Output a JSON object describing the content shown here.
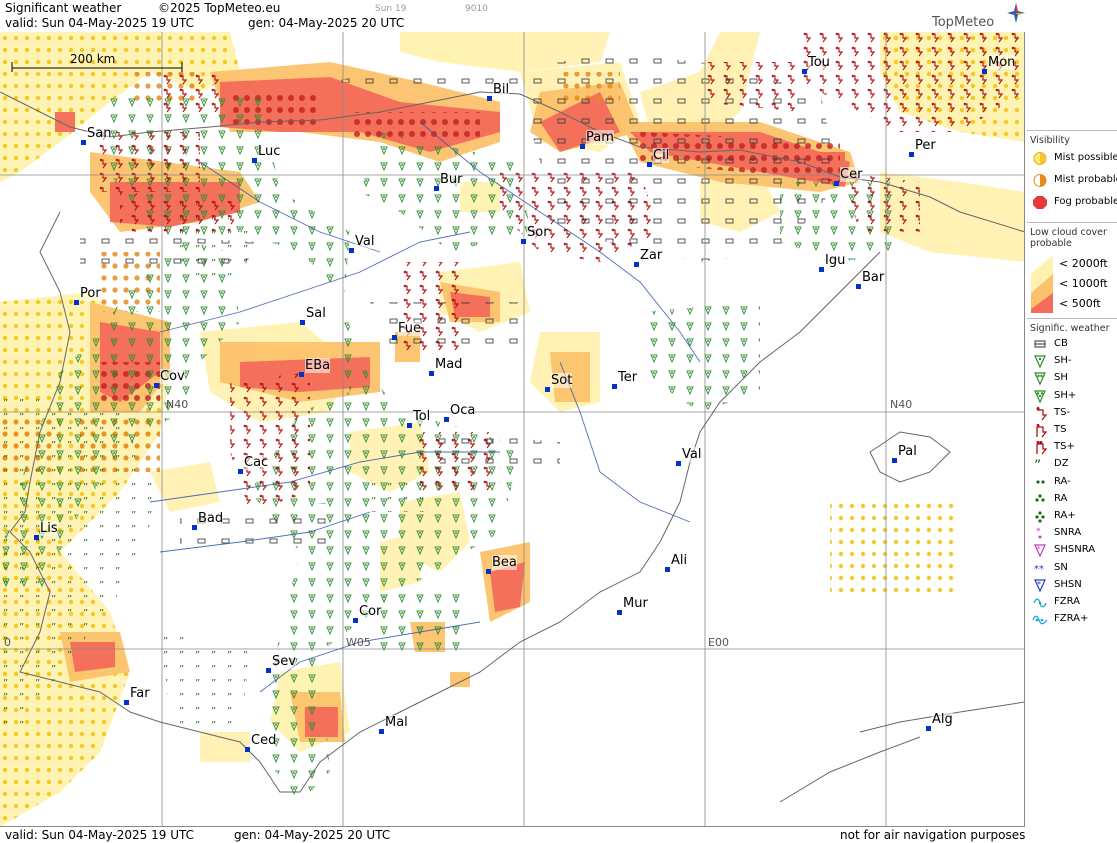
{
  "header": {
    "title": "Significant weather",
    "copyright": "©2025 TopMeteo.eu",
    "valid": "valid:  Sun  04-May-2025  19 UTC",
    "gen": "gen: 04-May-2025  20 UTC",
    "sun": "Sun 19",
    "code": "9010",
    "logo": "TopMeteo"
  },
  "scale": {
    "label": "200 km"
  },
  "footer": {
    "valid": "valid:  Sun  04-May-2025  19 UTC",
    "gen": "gen: 04-May-2025  20 UTC",
    "disclaimer": "not for air navigation purposes"
  },
  "grid_labels": [
    {
      "text": "N40",
      "at": "west"
    },
    {
      "text": "N40",
      "at": "east"
    },
    {
      "text": "W05"
    },
    {
      "text": "E00"
    },
    {
      "text": "0"
    }
  ],
  "cities": [
    {
      "name": "San"
    },
    {
      "name": "Luc"
    },
    {
      "name": "Bur"
    },
    {
      "name": "Bil"
    },
    {
      "name": "Pam"
    },
    {
      "name": "Cil"
    },
    {
      "name": "Tou"
    },
    {
      "name": "Mon"
    },
    {
      "name": "Per"
    },
    {
      "name": "Cer"
    },
    {
      "name": "Val"
    },
    {
      "name": "Sor"
    },
    {
      "name": "Zar"
    },
    {
      "name": "Igu"
    },
    {
      "name": "Bar"
    },
    {
      "name": "Por"
    },
    {
      "name": "Sal"
    },
    {
      "name": "Fue"
    },
    {
      "name": "Mad"
    },
    {
      "name": "EBa"
    },
    {
      "name": "Cov"
    },
    {
      "name": "Sot"
    },
    {
      "name": "Ter"
    },
    {
      "name": "Tol"
    },
    {
      "name": "Oca"
    },
    {
      "name": "Cac"
    },
    {
      "name": "Val"
    },
    {
      "name": "Pal"
    },
    {
      "name": "Bad"
    },
    {
      "name": "Lis"
    },
    {
      "name": "Bea"
    },
    {
      "name": "Ali"
    },
    {
      "name": "Mur"
    },
    {
      "name": "Cor"
    },
    {
      "name": "Sev"
    },
    {
      "name": "Far"
    },
    {
      "name": "Mal"
    },
    {
      "name": "Ced"
    },
    {
      "name": "Alg"
    }
  ],
  "legend": {
    "visibility": {
      "title": "Visibility",
      "items": [
        {
          "label": "Mist possible",
          "color": "#ffe97a"
        },
        {
          "label": "Mist probable",
          "color": "#f6a623"
        },
        {
          "label": "Fog probable",
          "color": "#e8383b"
        }
      ]
    },
    "low_cloud": {
      "title_1": "Low cloud cover",
      "title_2": "probable",
      "items": [
        {
          "label": "< 2000ft",
          "color": "#fff2b0"
        },
        {
          "label": "< 1000ft",
          "color": "#fcc26b"
        },
        {
          "label": "<  500ft",
          "color": "#f46c5a"
        }
      ]
    },
    "sigwx": {
      "title": "Signific. weather",
      "items": [
        {
          "label": "CB",
          "icon": "cb-icon"
        },
        {
          "label": "SH-",
          "icon": "shower-light-icon"
        },
        {
          "label": "SH",
          "icon": "shower-icon"
        },
        {
          "label": "SH+",
          "icon": "shower-heavy-icon"
        },
        {
          "label": "TS-",
          "icon": "thunderstorm-light-icon"
        },
        {
          "label": "TS",
          "icon": "thunderstorm-icon"
        },
        {
          "label": "TS+",
          "icon": "thunderstorm-heavy-icon"
        },
        {
          "label": "DZ",
          "icon": "drizzle-icon"
        },
        {
          "label": "RA-",
          "icon": "rain-light-icon"
        },
        {
          "label": "RA",
          "icon": "rain-icon"
        },
        {
          "label": "RA+",
          "icon": "rain-heavy-icon"
        },
        {
          "label": "SNRA",
          "icon": "sleet-icon"
        },
        {
          "label": "SHSNRA",
          "icon": "sleet-shower-icon"
        },
        {
          "label": "SN",
          "icon": "snow-icon"
        },
        {
          "label": "SHSN",
          "icon": "snow-shower-icon"
        },
        {
          "label": "FZRA",
          "icon": "freezing-rain-icon"
        },
        {
          "label": "FZRA+",
          "icon": "freezing-rain-heavy-icon"
        }
      ]
    }
  },
  "colors": {
    "mist": "#ffe97a",
    "low_cloud_2000": "#fff2b0",
    "low_cloud_1000": "#fcc26b",
    "low_cloud_500": "#f46c5a",
    "city_marker": "#0033cc",
    "shower_symbol": "#2e8b2e",
    "thunder_symbol": "#b01010"
  }
}
